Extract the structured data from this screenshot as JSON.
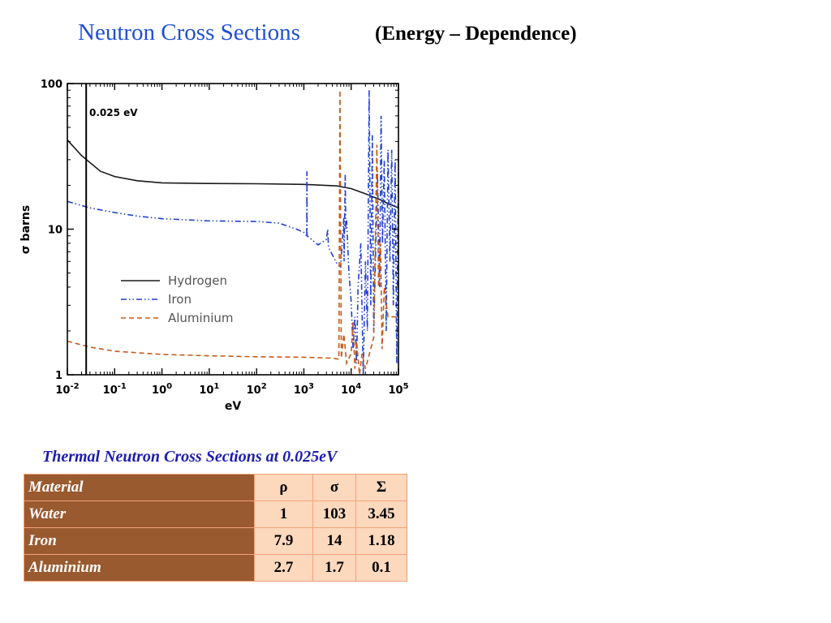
{
  "header": {
    "title": "Neutron Cross Sections",
    "subtitle": "(Energy – Dependence)"
  },
  "chart_data": {
    "type": "line",
    "xlabel": "eV",
    "ylabel": "σ  barns",
    "xscale": "log",
    "yscale": "log",
    "xlim": [
      0.01,
      100000
    ],
    "ylim": [
      1,
      100
    ],
    "x_ticks": [
      {
        "base": "10",
        "exp": "-2"
      },
      {
        "base": "10",
        "exp": "-1"
      },
      {
        "base": "10",
        "exp": "0"
      },
      {
        "base": "10",
        "exp": "1"
      },
      {
        "base": "10",
        "exp": "2"
      },
      {
        "base": "10",
        "exp": "3"
      },
      {
        "base": "10",
        "exp": "4"
      },
      {
        "base": "10",
        "exp": "5"
      }
    ],
    "y_ticks": [
      "1",
      "10",
      "100"
    ],
    "annotation": {
      "label": "0.025 eV",
      "x": 0.025
    },
    "legend_position": "lower-left",
    "series": [
      {
        "name": "Hydrogen",
        "color": "#1a1a1a",
        "style": "solid",
        "points": [
          [
            0.01,
            41
          ],
          [
            0.02,
            32
          ],
          [
            0.05,
            25
          ],
          [
            0.1,
            23
          ],
          [
            0.3,
            21.5
          ],
          [
            1,
            20.8
          ],
          [
            10,
            20.6
          ],
          [
            100,
            20.5
          ],
          [
            1000,
            20.3
          ],
          [
            5000,
            19.8
          ],
          [
            10000,
            19
          ],
          [
            20000,
            17.5
          ],
          [
            40000,
            16
          ],
          [
            60000,
            15
          ],
          [
            100000,
            14
          ]
        ]
      },
      {
        "name": "Iron",
        "color": "#1f3fd0",
        "style": "dash-dot-dot",
        "points": [
          [
            0.01,
            15.5
          ],
          [
            0.03,
            14
          ],
          [
            0.1,
            13
          ],
          [
            0.3,
            12.3
          ],
          [
            1,
            11.8
          ],
          [
            10,
            11.4
          ],
          [
            100,
            11.3
          ],
          [
            300,
            11
          ],
          [
            700,
            10
          ],
          [
            1000,
            9.5
          ],
          [
            1150,
            9
          ],
          [
            1160,
            25
          ],
          [
            1170,
            9
          ],
          [
            2000,
            7.8
          ],
          [
            3000,
            8.5
          ],
          [
            3200,
            10
          ],
          [
            3300,
            7.5
          ],
          [
            5000,
            5.8
          ],
          [
            6000,
            5.5
          ],
          [
            7000,
            12
          ],
          [
            7100,
            6
          ],
          [
            7500,
            24
          ],
          [
            7700,
            10
          ],
          [
            8000,
            11.5
          ],
          [
            9000,
            5
          ],
          [
            10000,
            3.2
          ],
          [
            11000,
            1.5
          ],
          [
            12000,
            2.5
          ],
          [
            13000,
            1.2
          ],
          [
            14000,
            4
          ],
          [
            16000,
            8
          ],
          [
            18000,
            1
          ],
          [
            20000,
            6
          ],
          [
            22000,
            2
          ],
          [
            24000,
            90
          ],
          [
            26000,
            3
          ],
          [
            28000,
            45
          ],
          [
            30000,
            2
          ],
          [
            33000,
            7
          ],
          [
            36000,
            25
          ],
          [
            40000,
            4
          ],
          [
            43000,
            60
          ],
          [
            46000,
            8
          ],
          [
            50000,
            30
          ],
          [
            55000,
            2
          ],
          [
            60000,
            35
          ],
          [
            66000,
            6
          ],
          [
            72000,
            35
          ],
          [
            78000,
            3
          ],
          [
            85000,
            30
          ],
          [
            92000,
            1.2
          ],
          [
            100000,
            35
          ]
        ]
      },
      {
        "name": "Aluminium",
        "color": "#c85a19",
        "style": "dashed",
        "points": [
          [
            0.01,
            1.7
          ],
          [
            0.03,
            1.55
          ],
          [
            0.1,
            1.45
          ],
          [
            1,
            1.38
          ],
          [
            10,
            1.35
          ],
          [
            100,
            1.33
          ],
          [
            1000,
            1.32
          ],
          [
            4000,
            1.3
          ],
          [
            5500,
            1.28
          ],
          [
            5800,
            90
          ],
          [
            6200,
            1.3
          ],
          [
            7000,
            1.9
          ],
          [
            8000,
            1.2
          ],
          [
            10000,
            1.4
          ],
          [
            11000,
            2.3
          ],
          [
            12000,
            1.1
          ],
          [
            13000,
            1.7
          ],
          [
            15000,
            1
          ],
          [
            17000,
            1.4
          ],
          [
            20000,
            1.1
          ],
          [
            30000,
            1.8
          ],
          [
            35000,
            38
          ],
          [
            38000,
            4
          ],
          [
            42000,
            8
          ],
          [
            45000,
            1.5
          ],
          [
            50000,
            4
          ],
          [
            60000,
            2.5
          ],
          [
            100000,
            2.5
          ]
        ]
      }
    ]
  },
  "thermal_table": {
    "caption": "Thermal Neutron Cross Sections at 0.025eV",
    "headers": [
      "Material",
      "ρ",
      "σ",
      "Σ"
    ],
    "rows": [
      [
        "Water",
        "1",
        "103",
        "3.45"
      ],
      [
        "Iron",
        "7.9",
        "14",
        "1.18"
      ],
      [
        "Aluminium",
        "2.7",
        "1.7",
        "0.1"
      ]
    ]
  }
}
